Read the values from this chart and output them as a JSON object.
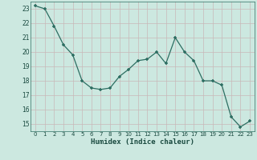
{
  "x": [
    0,
    1,
    2,
    3,
    4,
    5,
    6,
    7,
    8,
    9,
    10,
    11,
    12,
    13,
    14,
    15,
    16,
    17,
    18,
    19,
    20,
    21,
    22,
    23
  ],
  "y": [
    23.2,
    23.0,
    21.8,
    20.5,
    19.8,
    18.0,
    17.5,
    17.4,
    17.5,
    18.3,
    18.8,
    19.4,
    19.5,
    20.0,
    19.2,
    21.0,
    20.0,
    19.4,
    18.0,
    18.0,
    17.7,
    15.5,
    14.8,
    15.2
  ],
  "xlabel": "Humidex (Indice chaleur)",
  "ylim": [
    14.5,
    23.5
  ],
  "xlim": [
    -0.5,
    23.5
  ],
  "yticks": [
    15,
    16,
    17,
    18,
    19,
    20,
    21,
    22,
    23
  ],
  "xticks": [
    0,
    1,
    2,
    3,
    4,
    5,
    6,
    7,
    8,
    9,
    10,
    11,
    12,
    13,
    14,
    15,
    16,
    17,
    18,
    19,
    20,
    21,
    22,
    23
  ],
  "line_color": "#2d6e62",
  "marker_color": "#2d6e62",
  "bg_color": "#cce8e0",
  "grid_color": "#c8b8b8",
  "fig_bg": "#cce8e0"
}
